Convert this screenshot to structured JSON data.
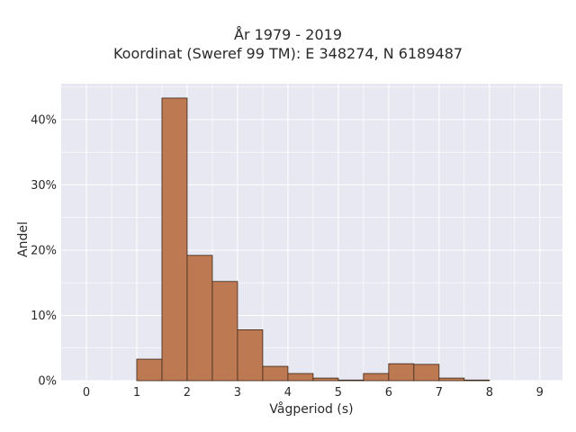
{
  "chart_data": {
    "type": "bar",
    "title_line1": "År 1979 - 2019",
    "title_line2": "Koordinat (Sweref 99 TM): E 348274, N 6189487",
    "xlabel": "Vågperiod (s)",
    "ylabel": "Andel",
    "xlim": [
      -0.5,
      9.45
    ],
    "ylim": [
      0,
      45.5
    ],
    "x_ticks": [
      0,
      1,
      2,
      3,
      4,
      5,
      6,
      7,
      8,
      9
    ],
    "y_ticks": [
      0,
      10,
      20,
      30,
      40
    ],
    "y_tick_labels": [
      "0%",
      "10%",
      "20%",
      "30%",
      "40%"
    ],
    "bin_width": 0.5,
    "bins": [
      {
        "start": 1.0,
        "value": 3.3
      },
      {
        "start": 1.5,
        "value": 43.3
      },
      {
        "start": 2.0,
        "value": 19.2
      },
      {
        "start": 2.5,
        "value": 15.2
      },
      {
        "start": 3.0,
        "value": 7.8
      },
      {
        "start": 3.5,
        "value": 2.2
      },
      {
        "start": 4.0,
        "value": 1.1
      },
      {
        "start": 4.5,
        "value": 0.4
      },
      {
        "start": 5.0,
        "value": 0.1
      },
      {
        "start": 5.5,
        "value": 1.1
      },
      {
        "start": 6.0,
        "value": 2.6
      },
      {
        "start": 6.5,
        "value": 2.5
      },
      {
        "start": 7.0,
        "value": 0.4
      },
      {
        "start": 7.5,
        "value": 0.1
      }
    ],
    "grid": true,
    "colors": {
      "bar_fill": "#bd7a52",
      "bar_stroke": "#3a2416",
      "plot_bg": "#e8e8f2",
      "grid": "#ffffff"
    }
  }
}
